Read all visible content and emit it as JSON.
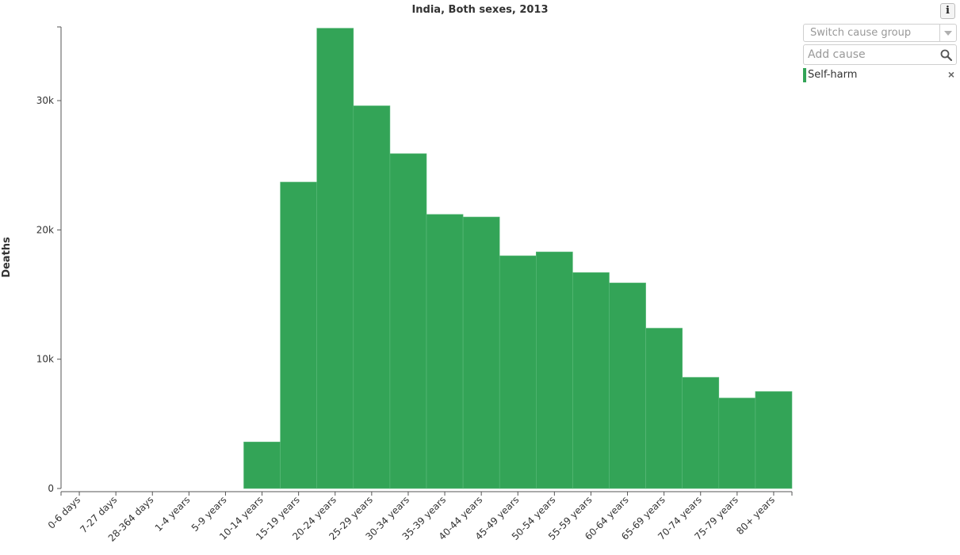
{
  "title": "India, Both sexes, 2013",
  "info_button": {
    "label": "i",
    "icon": "info-icon"
  },
  "controls": {
    "switch_placeholder": "Switch cause group",
    "add_cause_placeholder": "Add cause",
    "add_cause_value": ""
  },
  "legend": [
    {
      "label": "Self-harm",
      "color": "#33a457",
      "remove": "×"
    }
  ],
  "colors": {
    "bar": "#33a457",
    "bar_border": "#5dbb7c",
    "axis": "#555555"
  },
  "chart_data": {
    "type": "bar",
    "title": "India, Both sexes, 2013",
    "ylabel": "Deaths",
    "xlabel": "",
    "ylim": [
      0,
      35700
    ],
    "yticks": [
      0,
      10000,
      20000,
      30000
    ],
    "ytick_labels": [
      "0",
      "10k",
      "20k",
      "30k"
    ],
    "grid": false,
    "categories": [
      "0-6 days",
      "7-27 days",
      "28-364 days",
      "1-4 years",
      "5-9 years",
      "10-14 years",
      "15-19 years",
      "20-24 years",
      "25-29 years",
      "30-34 years",
      "35-39 years",
      "40-44 years",
      "45-49 years",
      "50-54 years",
      "55-59 years",
      "60-64 years",
      "65-69 years",
      "70-74 years",
      "75-79 years",
      "80+ years"
    ],
    "series": [
      {
        "name": "Self-harm",
        "values": [
          0,
          0,
          0,
          0,
          0,
          3600,
          23700,
          35600,
          29600,
          25900,
          21200,
          21000,
          18000,
          18300,
          16700,
          15900,
          12400,
          8600,
          7000,
          7500
        ]
      }
    ]
  }
}
